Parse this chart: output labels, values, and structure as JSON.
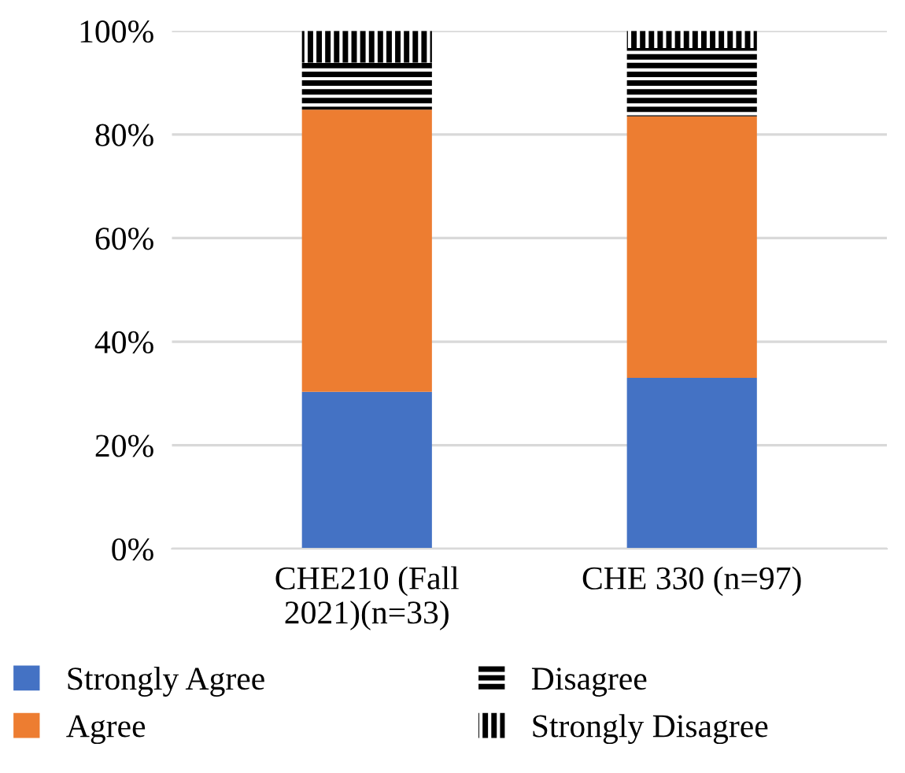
{
  "chart_data": {
    "type": "bar",
    "stacked": true,
    "categories": [
      "CHE210 (Fall\n2021)(n=33)",
      "CHE 330 (n=97)"
    ],
    "series": [
      {
        "name": "Strongly Agree",
        "color": "#4472c4",
        "values": [
          30.3,
          33.0
        ]
      },
      {
        "name": "Agree",
        "color": "#ed7d31",
        "values": [
          54.5,
          50.5
        ]
      },
      {
        "name": "Disagree",
        "color": "#000000",
        "values": [
          9.1,
          13.2
        ]
      },
      {
        "name": "Strongly Disagree",
        "color": "#000000",
        "values": [
          6.1,
          3.3
        ]
      }
    ],
    "ylim": [
      0,
      100
    ],
    "yticks": [
      {
        "value": 0,
        "label": "0%"
      },
      {
        "value": 20,
        "label": "20%"
      },
      {
        "value": 40,
        "label": "40%"
      },
      {
        "value": 60,
        "label": "60%"
      },
      {
        "value": 80,
        "label": "80%"
      },
      {
        "value": 100,
        "label": "100%"
      }
    ],
    "grid": "y",
    "legend": "bottom"
  }
}
